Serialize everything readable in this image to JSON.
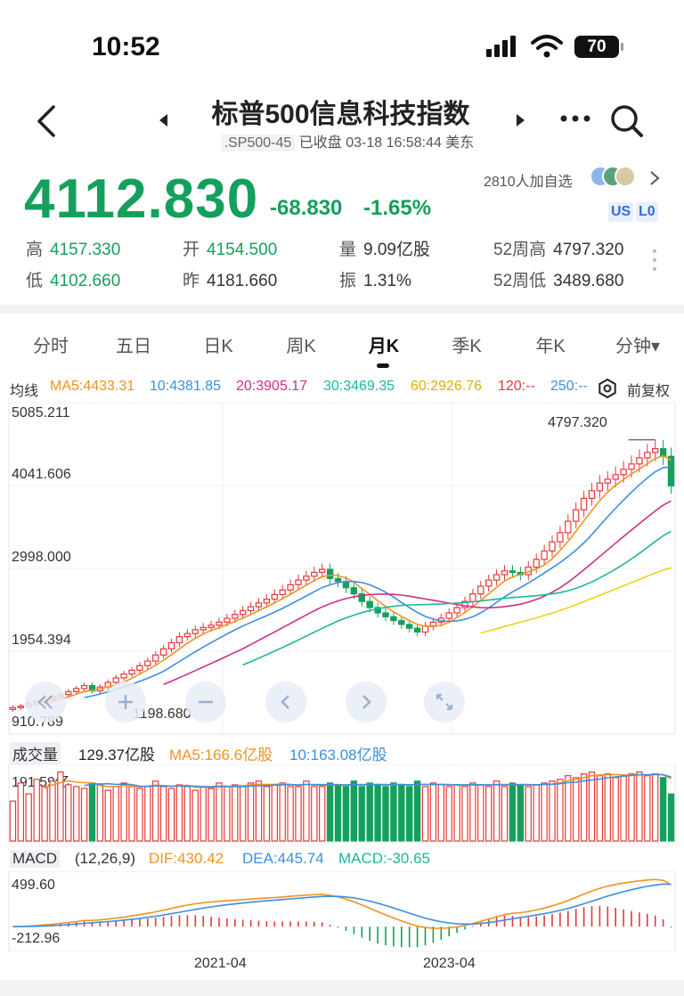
{
  "status": {
    "time": "10:52",
    "battery": "70"
  },
  "header": {
    "title": "标普500信息科技指数",
    "code": ".SP500-45",
    "status_text": "已收盘 03-18 16:58:44 美东"
  },
  "quote": {
    "price": "4112.830",
    "change": "-68.830",
    "change_pct": "-1.65%",
    "followers": "2810人加自选",
    "tag1": "US",
    "tag2": "L0"
  },
  "stats": {
    "high_label": "高",
    "high": "4157.330",
    "open_label": "开",
    "open": "4154.500",
    "vol_label": "量",
    "vol": "9.09亿股",
    "w52h_label": "52周高",
    "w52h": "4797.320",
    "low_label": "低",
    "low": "4102.660",
    "prev_label": "昨",
    "prev": "4181.660",
    "amp_label": "振",
    "amp": "1.31%",
    "w52l_label": "52周低",
    "w52l": "3489.680"
  },
  "tabs": [
    "分时",
    "五日",
    "日K",
    "周K",
    "月K",
    "季K",
    "年K",
    "分钟▾"
  ],
  "active_tab": "月K",
  "ma": {
    "label": "均线",
    "ma5": "MA5:4433.31",
    "ma10": "10:4381.85",
    "ma20": "20:3905.17",
    "ma30": "30:3469.35",
    "ma60": "60:2926.76",
    "ma120": "120:--",
    "ma250": "250:--",
    "adjust": "前复权"
  },
  "price_axis": [
    "5085.211",
    "4041.606",
    "2998.000",
    "1954.394",
    "910.789"
  ],
  "annotations": {
    "high": "4797.320",
    "low": "1198.680"
  },
  "volume": {
    "label": "成交量",
    "value": "129.37亿股",
    "ma5": "MA5:166.6亿股",
    "ma10": "10:163.08亿股",
    "axis_max": "191.59亿"
  },
  "macd": {
    "label": "MACD",
    "params": "(12,26,9)",
    "dif": "DIF:430.42",
    "dea": "DEA:445.74",
    "macd": "MACD:-30.65",
    "axis_max": "499.60",
    "axis_min": "-212.96"
  },
  "x_axis": [
    "2021-04",
    "2023-04"
  ],
  "colors": {
    "up": "#e5383b",
    "down": "#14a05c",
    "ma5": "#f2921f",
    "ma10": "#3b8fe0",
    "ma20": "#cc2f8a",
    "ma30": "#1fb69b",
    "ma60": "#f0d11c",
    "accent": "#2e6fe0"
  },
  "chart_data": {
    "type": "candlestick",
    "interval": "monthly",
    "x_ticks": [
      "2021-04",
      "2023-04"
    ],
    "ylim": [
      910.789,
      5085.211
    ],
    "close": [
      1210,
      1230,
      1260,
      1290,
      1320,
      1350,
      1380,
      1420,
      1460,
      1500,
      1430,
      1480,
      1540,
      1600,
      1650,
      1700,
      1760,
      1820,
      1900,
      1980,
      2060,
      2140,
      2180,
      2230,
      2260,
      2290,
      2330,
      2380,
      2430,
      2480,
      2530,
      2580,
      2630,
      2690,
      2750,
      2820,
      2880,
      2930,
      2980,
      3020,
      2900,
      2860,
      2780,
      2700,
      2600,
      2520,
      2450,
      2400,
      2350,
      2300,
      2250,
      2200,
      2280,
      2330,
      2380,
      2450,
      2520,
      2600,
      2700,
      2800,
      2880,
      2950,
      3000,
      2980,
      2950,
      3050,
      3150,
      3260,
      3380,
      3500,
      3650,
      3800,
      3950,
      4050,
      4150,
      4200,
      4260,
      4330,
      4400,
      4480,
      4550,
      4600,
      4500,
      4112.83
    ],
    "volume_billion": [
      110,
      160,
      130,
      170,
      150,
      165,
      190,
      155,
      150,
      145,
      160,
      155,
      140,
      150,
      160,
      150,
      145,
      150,
      165,
      150,
      145,
      155,
      150,
      140,
      150,
      145,
      160,
      150,
      155,
      150,
      160,
      165,
      150,
      155,
      160,
      150,
      150,
      165,
      150,
      150,
      160,
      155,
      150,
      165,
      150,
      160,
      155,
      150,
      160,
      155,
      150,
      165,
      150,
      160,
      155,
      150,
      155,
      150,
      160,
      155,
      150,
      165,
      150,
      160,
      155,
      150,
      155,
      160,
      165,
      170,
      180,
      175,
      185,
      190,
      180,
      185,
      175,
      180,
      185,
      190,
      180,
      185,
      175,
      129.37
    ],
    "macd_hist_range": [
      -212.96,
      499.6
    ]
  }
}
